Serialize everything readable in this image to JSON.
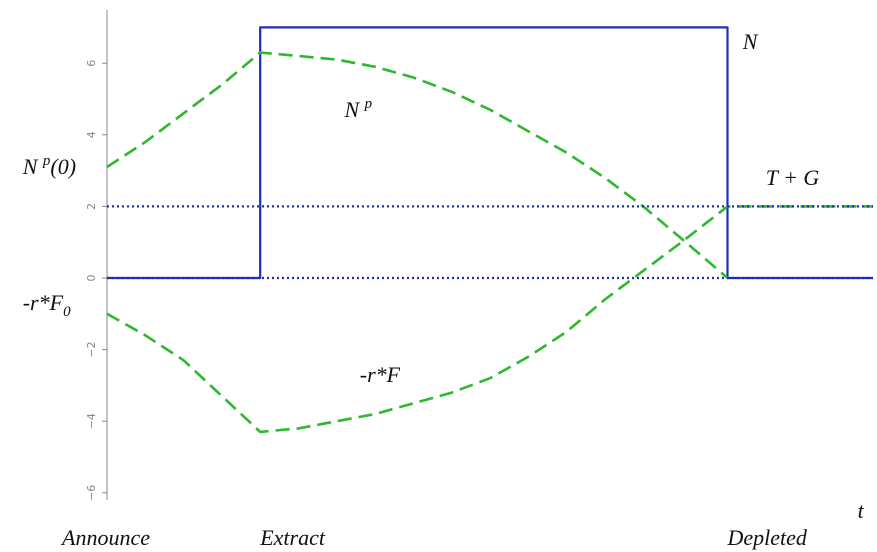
{
  "chart_data": {
    "type": "line",
    "title": "",
    "xlabel": "t",
    "ylabel": "",
    "xlim": [
      0,
      100
    ],
    "ylim": [
      -6,
      7
    ],
    "y_ticks": [
      -6,
      -4,
      -2,
      0,
      2,
      4,
      6
    ],
    "x_category_labels": [
      {
        "label": "Announce",
        "x": 0
      },
      {
        "label": "Extract",
        "x": 20
      },
      {
        "label": "Depleted",
        "x": 81
      }
    ],
    "grid": false,
    "legend": "none",
    "series": [
      {
        "color": "#1f2fb0",
        "style": "solid",
        "x": [
          0,
          20,
          20,
          81,
          81,
          100
        ],
        "y": [
          0,
          0,
          7,
          7,
          0,
          0
        ]
      },
      {
        "color": "#2db82d",
        "style": "dashed",
        "x": [
          0,
          5,
          10,
          15,
          20,
          25,
          30,
          35,
          40,
          45,
          50,
          55,
          60,
          65,
          70,
          75,
          81
        ],
        "y": [
          3.1,
          3.8,
          4.6,
          5.4,
          6.3,
          6.2,
          6.1,
          5.9,
          5.6,
          5.2,
          4.7,
          4.1,
          3.5,
          2.8,
          2.0,
          1.1,
          0
        ]
      },
      {
        "color": "#2db82d",
        "style": "dashed",
        "x": [
          0,
          5,
          10,
          15,
          20,
          25,
          30,
          35,
          40,
          45,
          50,
          55,
          60,
          65,
          70,
          75,
          81,
          90,
          100
        ],
        "y": [
          -1.0,
          -1.6,
          -2.3,
          -3.3,
          -4.3,
          -4.2,
          -4.0,
          -3.8,
          -3.5,
          -3.2,
          -2.8,
          -2.2,
          -1.5,
          -0.6,
          0.2,
          1.0,
          2.0,
          2.0,
          2.0
        ]
      },
      {
        "color": "#1f2fb0",
        "style": "dotted",
        "x": [
          0,
          100
        ],
        "y": [
          2,
          2
        ]
      },
      {
        "color": "#1f2fb0",
        "style": "dotted",
        "x": [
          0,
          100
        ],
        "y": [
          0,
          0
        ]
      }
    ],
    "annotations": [
      {
        "text": "N",
        "x": 83,
        "y": 6.4
      },
      {
        "text": "N ^p",
        "x": 31,
        "y": 4.5
      },
      {
        "text": "N ^p(0)",
        "x": -11,
        "y": 2.9
      },
      {
        "text": "T + G",
        "x": 86,
        "y": 2.6
      },
      {
        "text": "-r*F",
        "x": 33,
        "y": -2.9
      },
      {
        "text": "-r*F_0",
        "x": -11,
        "y": -0.9
      },
      {
        "text": "t",
        "x": 98,
        "y": -6.7
      }
    ]
  }
}
